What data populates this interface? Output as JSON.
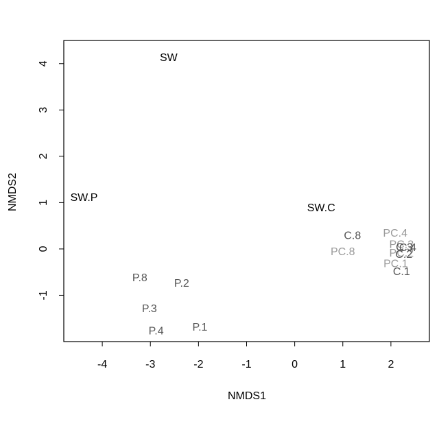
{
  "chart_data": {
    "type": "scatter",
    "title": "",
    "xlabel": "NMDS1",
    "ylabel": "NMDS2",
    "xlim": [
      -4.8,
      2.8
    ],
    "ylim": [
      -2.0,
      4.5
    ],
    "xticks": [
      -4,
      -3,
      -2,
      -1,
      0,
      1,
      2
    ],
    "yticks": [
      -1,
      0,
      1,
      2,
      3,
      4
    ],
    "grid": false,
    "colors": {
      "black": "#000000",
      "dark_gray": "#555555",
      "light_gray": "#999999"
    },
    "points": [
      {
        "label": "SW",
        "x": -2.62,
        "y": 4.12,
        "color": "black"
      },
      {
        "label": "SW.P",
        "x": -4.38,
        "y": 1.1,
        "color": "black"
      },
      {
        "label": "SW.C",
        "x": 0.55,
        "y": 0.88,
        "color": "black"
      },
      {
        "label": "P.8",
        "x": -3.22,
        "y": -0.63,
        "color": "dark_gray"
      },
      {
        "label": "P.2",
        "x": -2.35,
        "y": -0.75,
        "color": "dark_gray"
      },
      {
        "label": "P.3",
        "x": -3.02,
        "y": -1.3,
        "color": "dark_gray"
      },
      {
        "label": "P.4",
        "x": -2.88,
        "y": -1.78,
        "color": "dark_gray"
      },
      {
        "label": "P.1",
        "x": -1.97,
        "y": -1.7,
        "color": "dark_gray"
      },
      {
        "label": "C.8",
        "x": 1.2,
        "y": 0.28,
        "color": "dark_gray"
      },
      {
        "label": "PC.8",
        "x": 1.0,
        "y": -0.07,
        "color": "light_gray"
      },
      {
        "label": "PC.4",
        "x": 2.09,
        "y": 0.33,
        "color": "light_gray"
      },
      {
        "label": "PC.3",
        "x": 2.22,
        "y": 0.09,
        "color": "light_gray"
      },
      {
        "label": "PC.2",
        "x": 2.22,
        "y": -0.1,
        "color": "light_gray"
      },
      {
        "label": "PC.1",
        "x": 2.1,
        "y": -0.33,
        "color": "light_gray"
      },
      {
        "label": "C.3",
        "x": 2.28,
        "y": 0.03,
        "color": "dark_gray"
      },
      {
        "label": "C.4",
        "x": 2.35,
        "y": 0.02,
        "color": "dark_gray"
      },
      {
        "label": "C.2",
        "x": 2.27,
        "y": -0.13,
        "color": "dark_gray"
      },
      {
        "label": "C.1",
        "x": 2.22,
        "y": -0.5,
        "color": "dark_gray"
      }
    ]
  }
}
